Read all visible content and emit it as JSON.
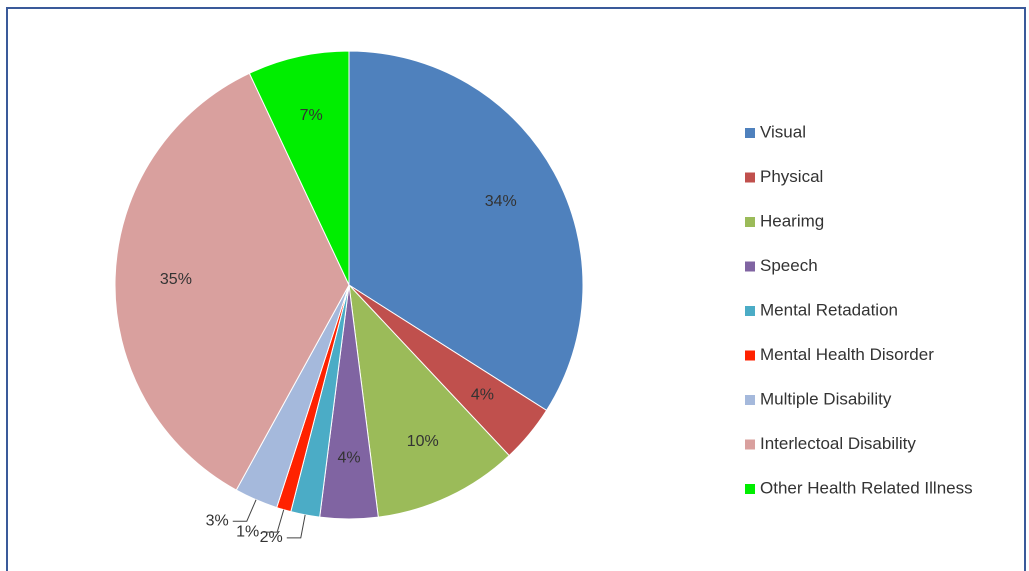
{
  "chart_data": {
    "type": "pie",
    "categories": [
      "Visual",
      "Physical",
      "Hearimg",
      "Speech",
      "Mental Retadation",
      "Mental Health Disorder",
      "Multiple Disability",
      "Interlectoal Disability",
      "Other Health Related Illness"
    ],
    "values": [
      34,
      4,
      10,
      4,
      2,
      1,
      3,
      35,
      7
    ],
    "value_labels": [
      "34%",
      "4%",
      "10%",
      "4%",
      "2%",
      "1%",
      "3%",
      "35%",
      "7%"
    ],
    "colors": [
      "#4f81bd",
      "#c0504d",
      "#9bbb59",
      "#8064a2",
      "#4bacc6",
      "#ff2200",
      "#a5b9dc",
      "#d9a09e",
      "#00ee00"
    ],
    "legend": "right"
  }
}
